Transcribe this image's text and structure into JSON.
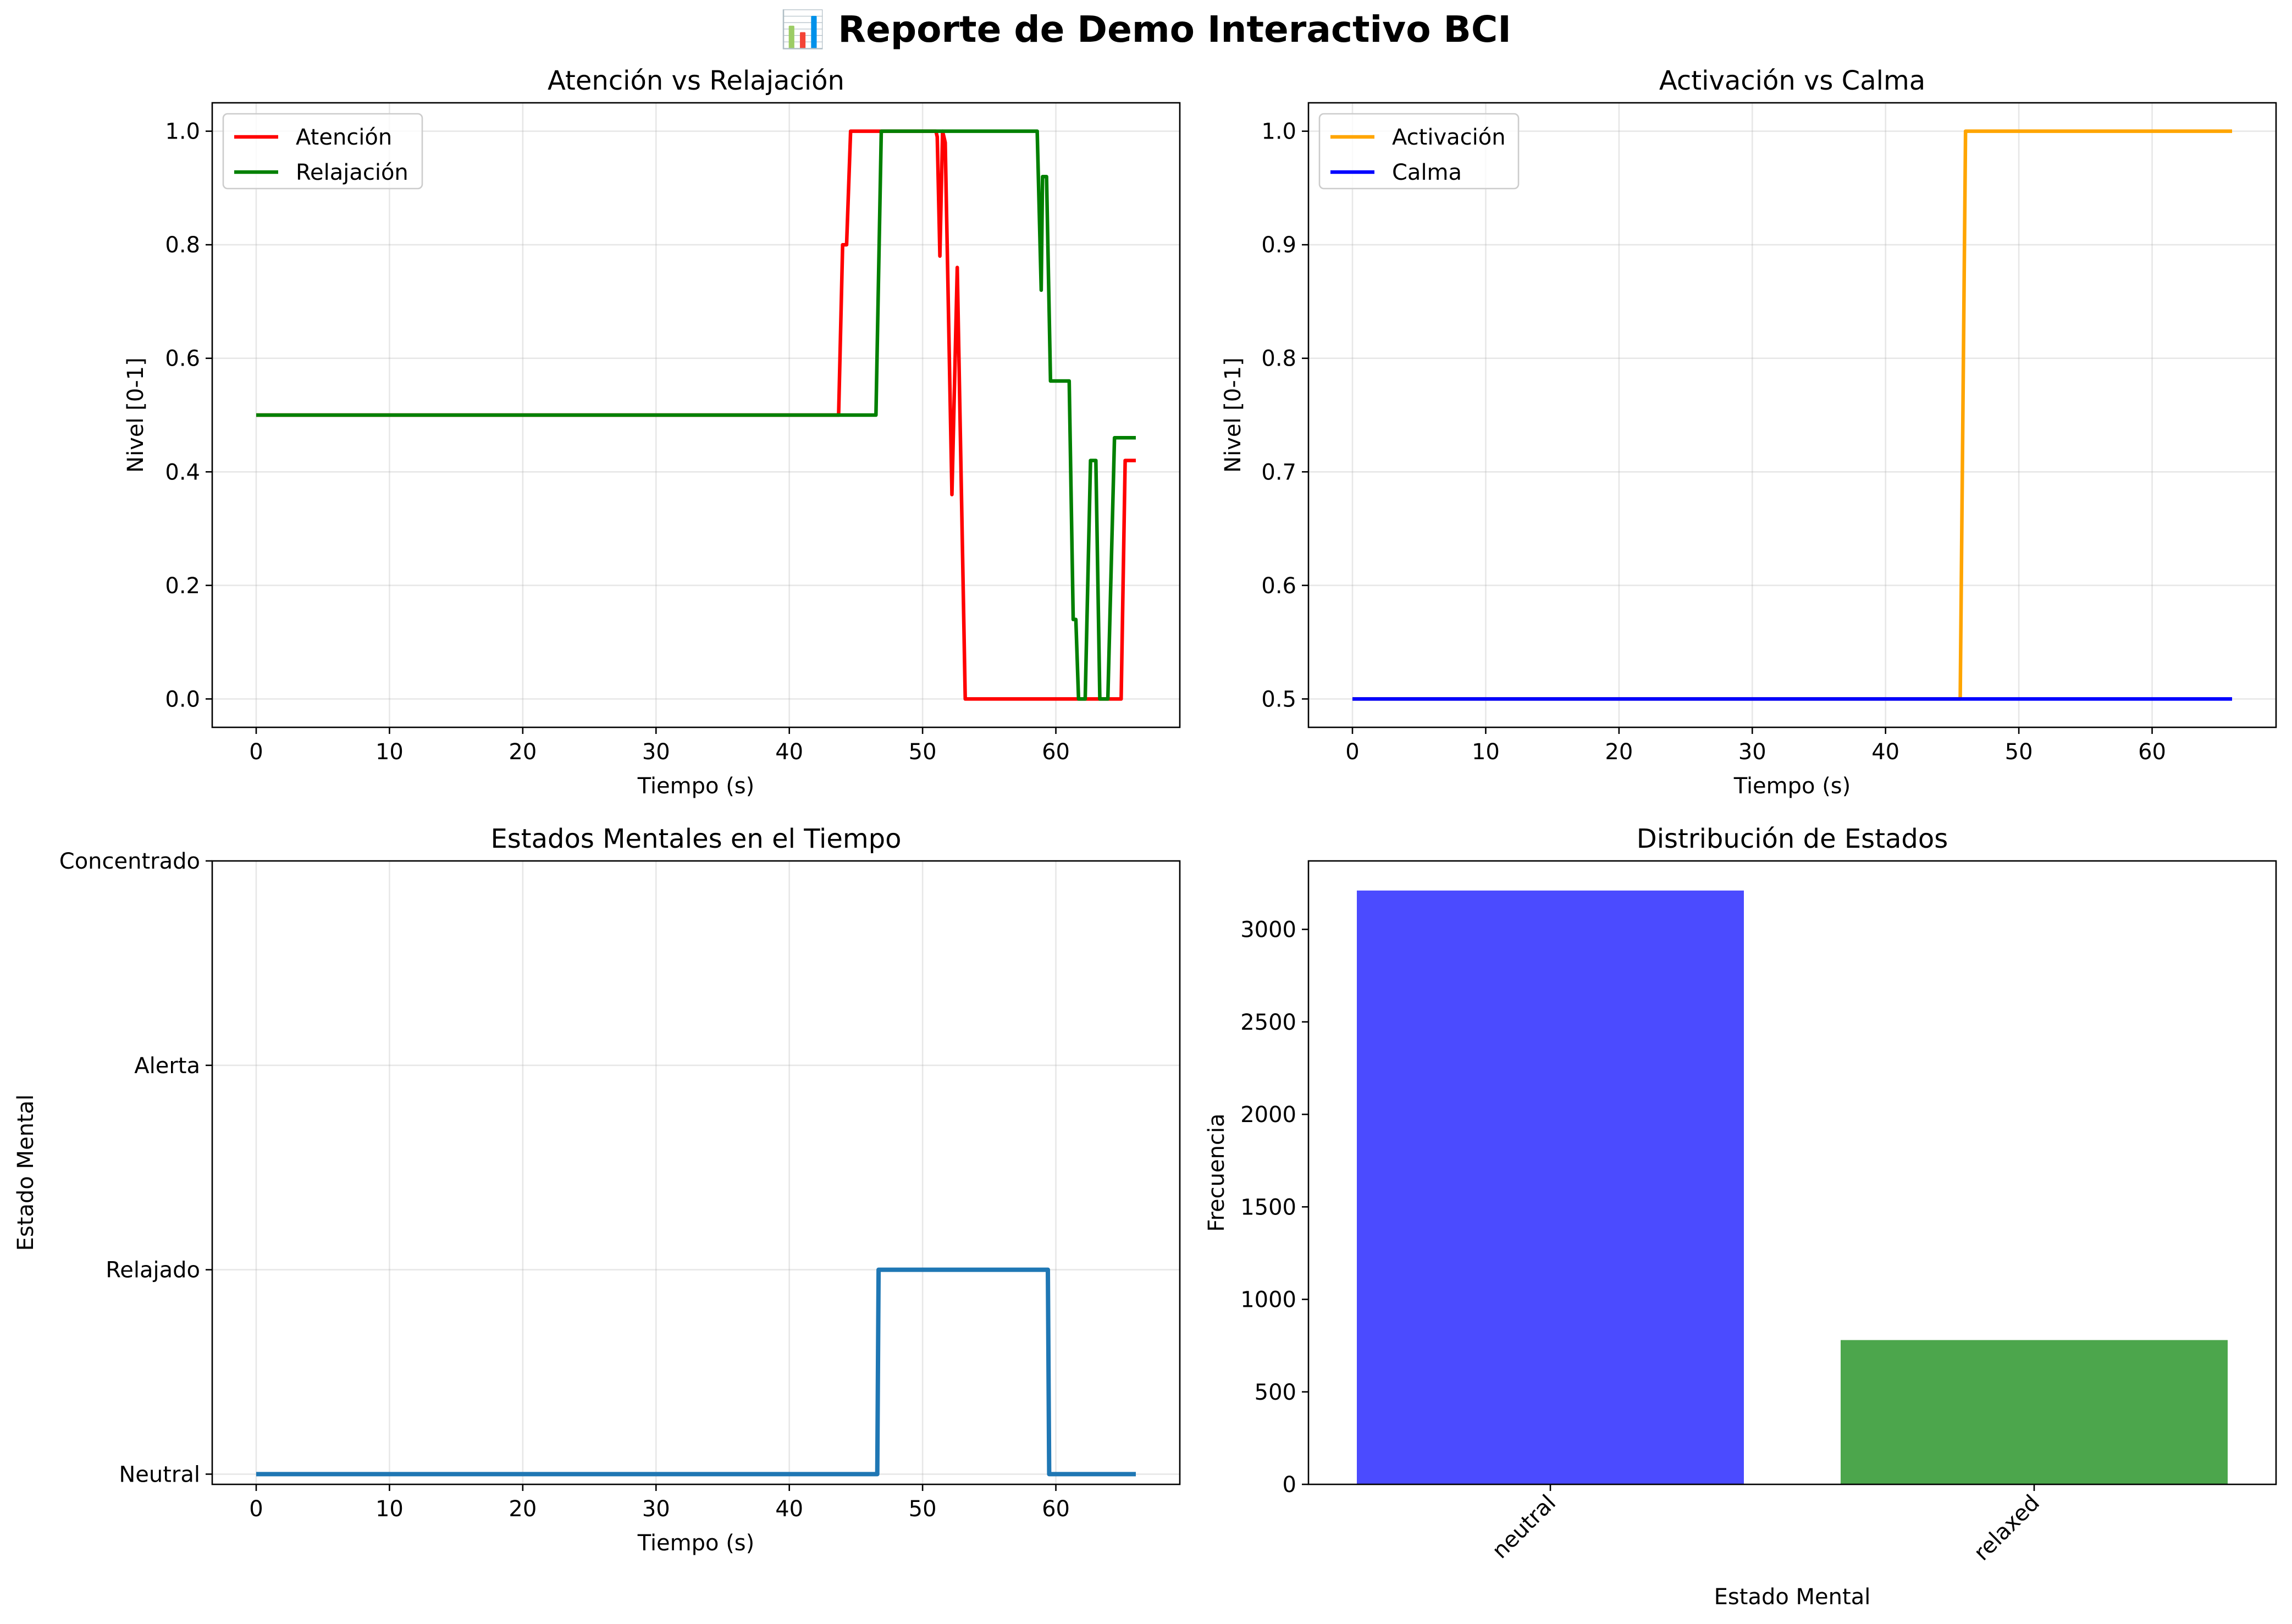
{
  "figure": {
    "title": "📊 Reporte de Demo Interactivo BCI"
  },
  "colors": {
    "atencion": "#ff0000",
    "relajacion": "#008000",
    "activacion": "#ffa500",
    "calma": "#0000ff",
    "estado": "#1f77b4",
    "bar_neutral": "#4b4bff",
    "bar_relaxed": "#4ca64c"
  },
  "chart_data": [
    {
      "type": "line",
      "title": "Atención vs Relajación",
      "xlabel": "Tiempo (s)",
      "ylabel": "Nivel [0-1]",
      "xlim": [
        -3.3,
        69.3
      ],
      "ylim": [
        -0.05,
        1.05
      ],
      "xticks": [
        0,
        10,
        20,
        30,
        40,
        50,
        60
      ],
      "yticks": [
        0.0,
        0.2,
        0.4,
        0.6,
        0.8,
        1.0
      ],
      "ytick_labels": [
        "0.0",
        "0.2",
        "0.4",
        "0.6",
        "0.8",
        "1.0"
      ],
      "grid": true,
      "legend": "top-left",
      "series": [
        {
          "name": "Atención",
          "color": "#ff0000",
          "points": [
            [
              0,
              0.5
            ],
            [
              43.7,
              0.5
            ],
            [
              44.0,
              0.8
            ],
            [
              44.3,
              0.8
            ],
            [
              44.6,
              1.0
            ],
            [
              51.0,
              1.0
            ],
            [
              51.1,
              0.99
            ],
            [
              51.3,
              0.78
            ],
            [
              51.5,
              1.0
            ],
            [
              51.7,
              0.98
            ],
            [
              52.2,
              0.36
            ],
            [
              52.6,
              0.76
            ],
            [
              53.2,
              0.0
            ],
            [
              64.9,
              0.0
            ],
            [
              65.2,
              0.42
            ],
            [
              66.0,
              0.42
            ]
          ]
        },
        {
          "name": "Relajación",
          "color": "#008000",
          "points": [
            [
              0,
              0.5
            ],
            [
              46.5,
              0.5
            ],
            [
              46.9,
              1.0
            ],
            [
              58.6,
              1.0
            ],
            [
              58.9,
              0.72
            ],
            [
              59.0,
              0.92
            ],
            [
              59.3,
              0.92
            ],
            [
              59.6,
              0.56
            ],
            [
              61.0,
              0.56
            ],
            [
              61.3,
              0.14
            ],
            [
              61.5,
              0.14
            ],
            [
              61.7,
              0.0
            ],
            [
              62.2,
              0.0
            ],
            [
              62.6,
              0.42
            ],
            [
              63.0,
              0.42
            ],
            [
              63.3,
              0.0
            ],
            [
              63.9,
              0.0
            ],
            [
              64.4,
              0.46
            ],
            [
              66.0,
              0.46
            ]
          ]
        }
      ]
    },
    {
      "type": "line",
      "title": "Activación vs Calma",
      "xlabel": "Tiempo (s)",
      "ylabel": "Nivel [0-1]",
      "xlim": [
        -3.3,
        69.3
      ],
      "ylim": [
        0.475,
        1.025
      ],
      "xticks": [
        0,
        10,
        20,
        30,
        40,
        50,
        60
      ],
      "yticks": [
        0.5,
        0.6,
        0.7,
        0.8,
        0.9,
        1.0
      ],
      "ytick_labels": [
        "0.5",
        "0.6",
        "0.7",
        "0.8",
        "0.9",
        "1.0"
      ],
      "grid": true,
      "legend": "top-left",
      "series": [
        {
          "name": "Activación",
          "color": "#ffa500",
          "points": [
            [
              0,
              0.5
            ],
            [
              45.6,
              0.5
            ],
            [
              46.0,
              1.0
            ],
            [
              66.0,
              1.0
            ]
          ]
        },
        {
          "name": "Calma",
          "color": "#0000ff",
          "points": [
            [
              0,
              0.5
            ],
            [
              66.0,
              0.5
            ]
          ]
        }
      ]
    },
    {
      "type": "line",
      "title": "Estados Mentales en el Tiempo",
      "xlabel": "Tiempo (s)",
      "ylabel": "Estado Mental",
      "xlim": [
        -3.3,
        69.3
      ],
      "ylim": [
        -0.05,
        3.0
      ],
      "xticks": [
        0,
        10,
        20,
        30,
        40,
        50,
        60
      ],
      "yticks": [
        0,
        1,
        2,
        3
      ],
      "ytick_labels": [
        "Neutral",
        "Relajado",
        "Alerta",
        "Concentrado"
      ],
      "grid": true,
      "series": [
        {
          "color": "#1f77b4",
          "points": [
            [
              0,
              0
            ],
            [
              46.6,
              0
            ],
            [
              46.7,
              1
            ],
            [
              59.4,
              1
            ],
            [
              59.5,
              0
            ],
            [
              66.0,
              0
            ]
          ]
        }
      ]
    },
    {
      "type": "bar",
      "title": "Distribución de Estados",
      "xlabel": "Estado Mental",
      "ylabel": "Frecuencia",
      "categories": [
        "neutral",
        "relaxed"
      ],
      "values": [
        3210,
        780
      ],
      "bar_colors": [
        "#4b4bff",
        "#4ca64c"
      ],
      "ylim": [
        0,
        3370
      ],
      "yticks": [
        0,
        500,
        1000,
        1500,
        2000,
        2500,
        3000
      ],
      "ytick_labels": [
        "0",
        "500",
        "1000",
        "1500",
        "2000",
        "2500",
        "3000"
      ],
      "grid": false
    }
  ]
}
